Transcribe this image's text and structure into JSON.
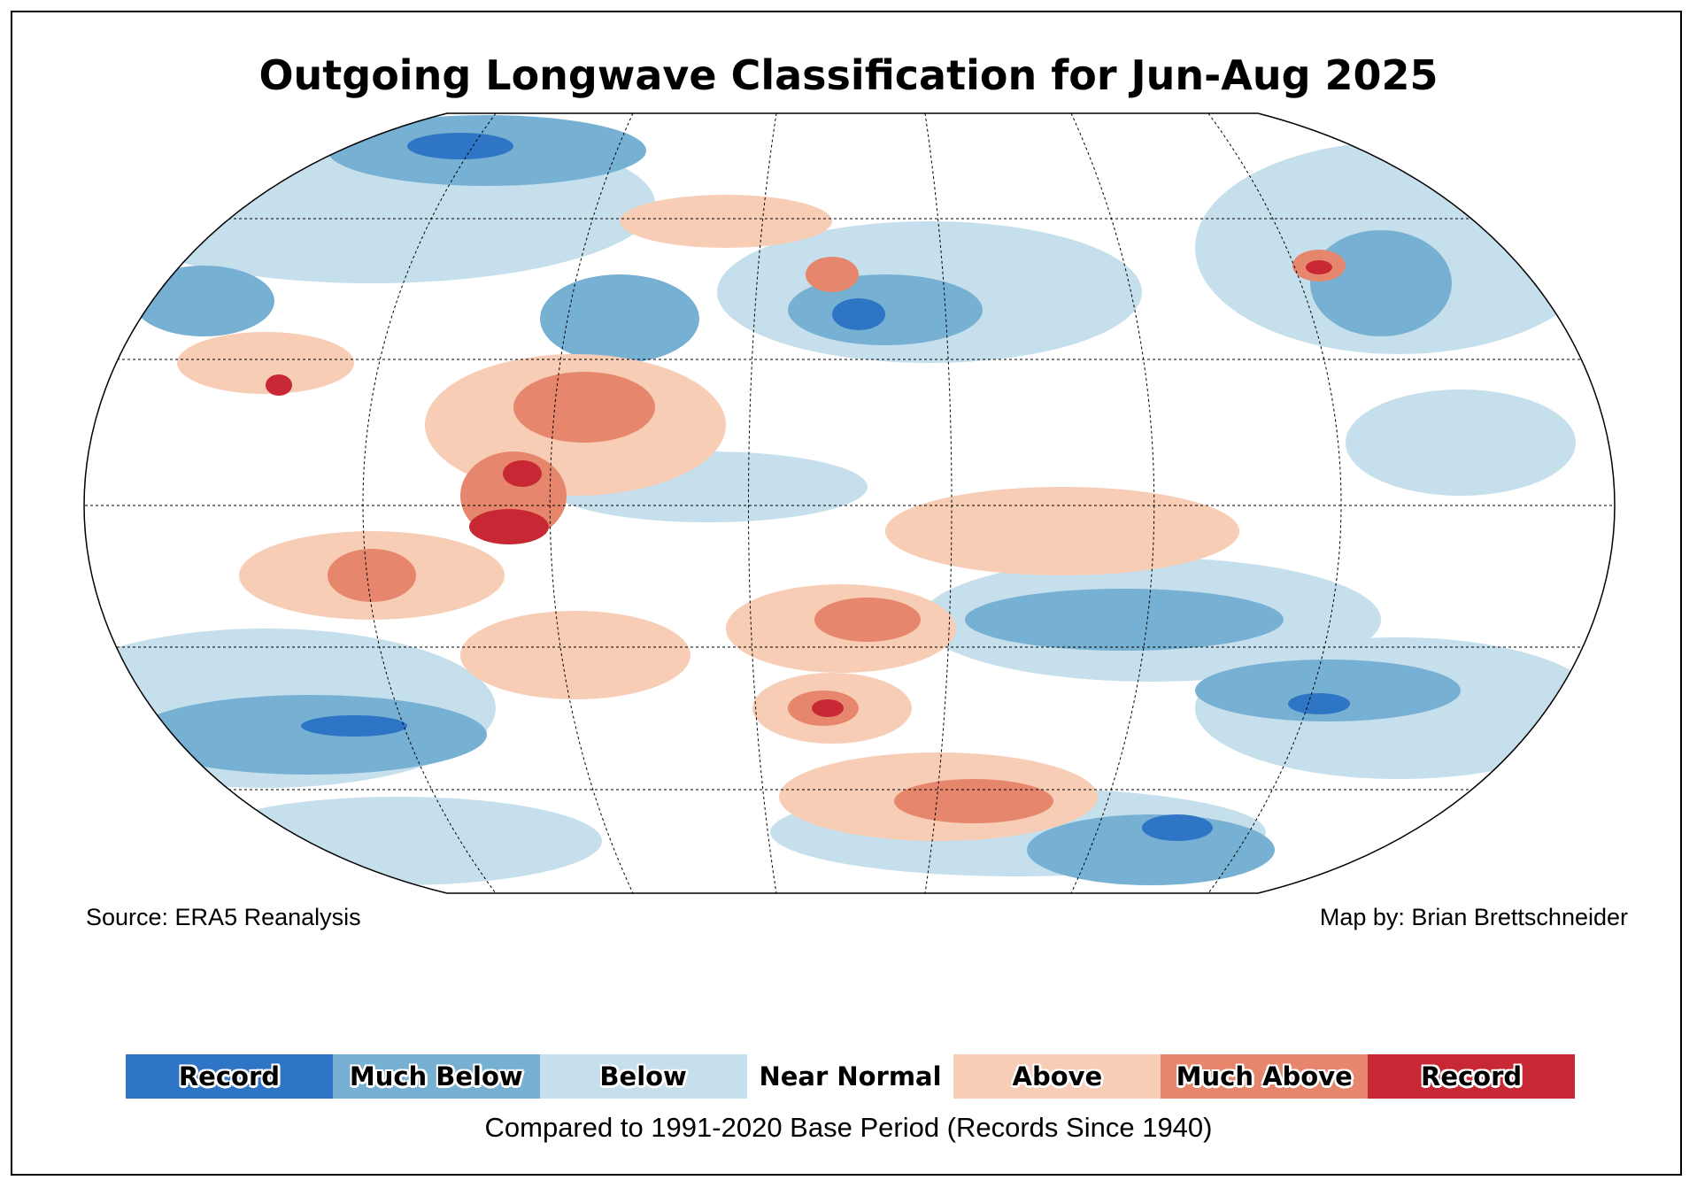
{
  "title": "Outgoing Longwave Classification for Jun-Aug 2025",
  "source": "Source: ERA5 Reanalysis",
  "credit": "Map by: Brian Brettschneider",
  "legend": [
    {
      "label": "Record",
      "color": "#2f75c5"
    },
    {
      "label": "Much Below",
      "color": "#76b0d3"
    },
    {
      "label": "Below",
      "color": "#c6dfec"
    },
    {
      "label": "Near Normal",
      "color": "#ffffff"
    },
    {
      "label": "Above",
      "color": "#f8cdb6"
    },
    {
      "label": "Much Above",
      "color": "#e6866d"
    },
    {
      "label": "Record",
      "color": "#c82834"
    }
  ],
  "base_period_note": "Compared to 1991-2020 Base Period   (Records Since 1940)"
}
